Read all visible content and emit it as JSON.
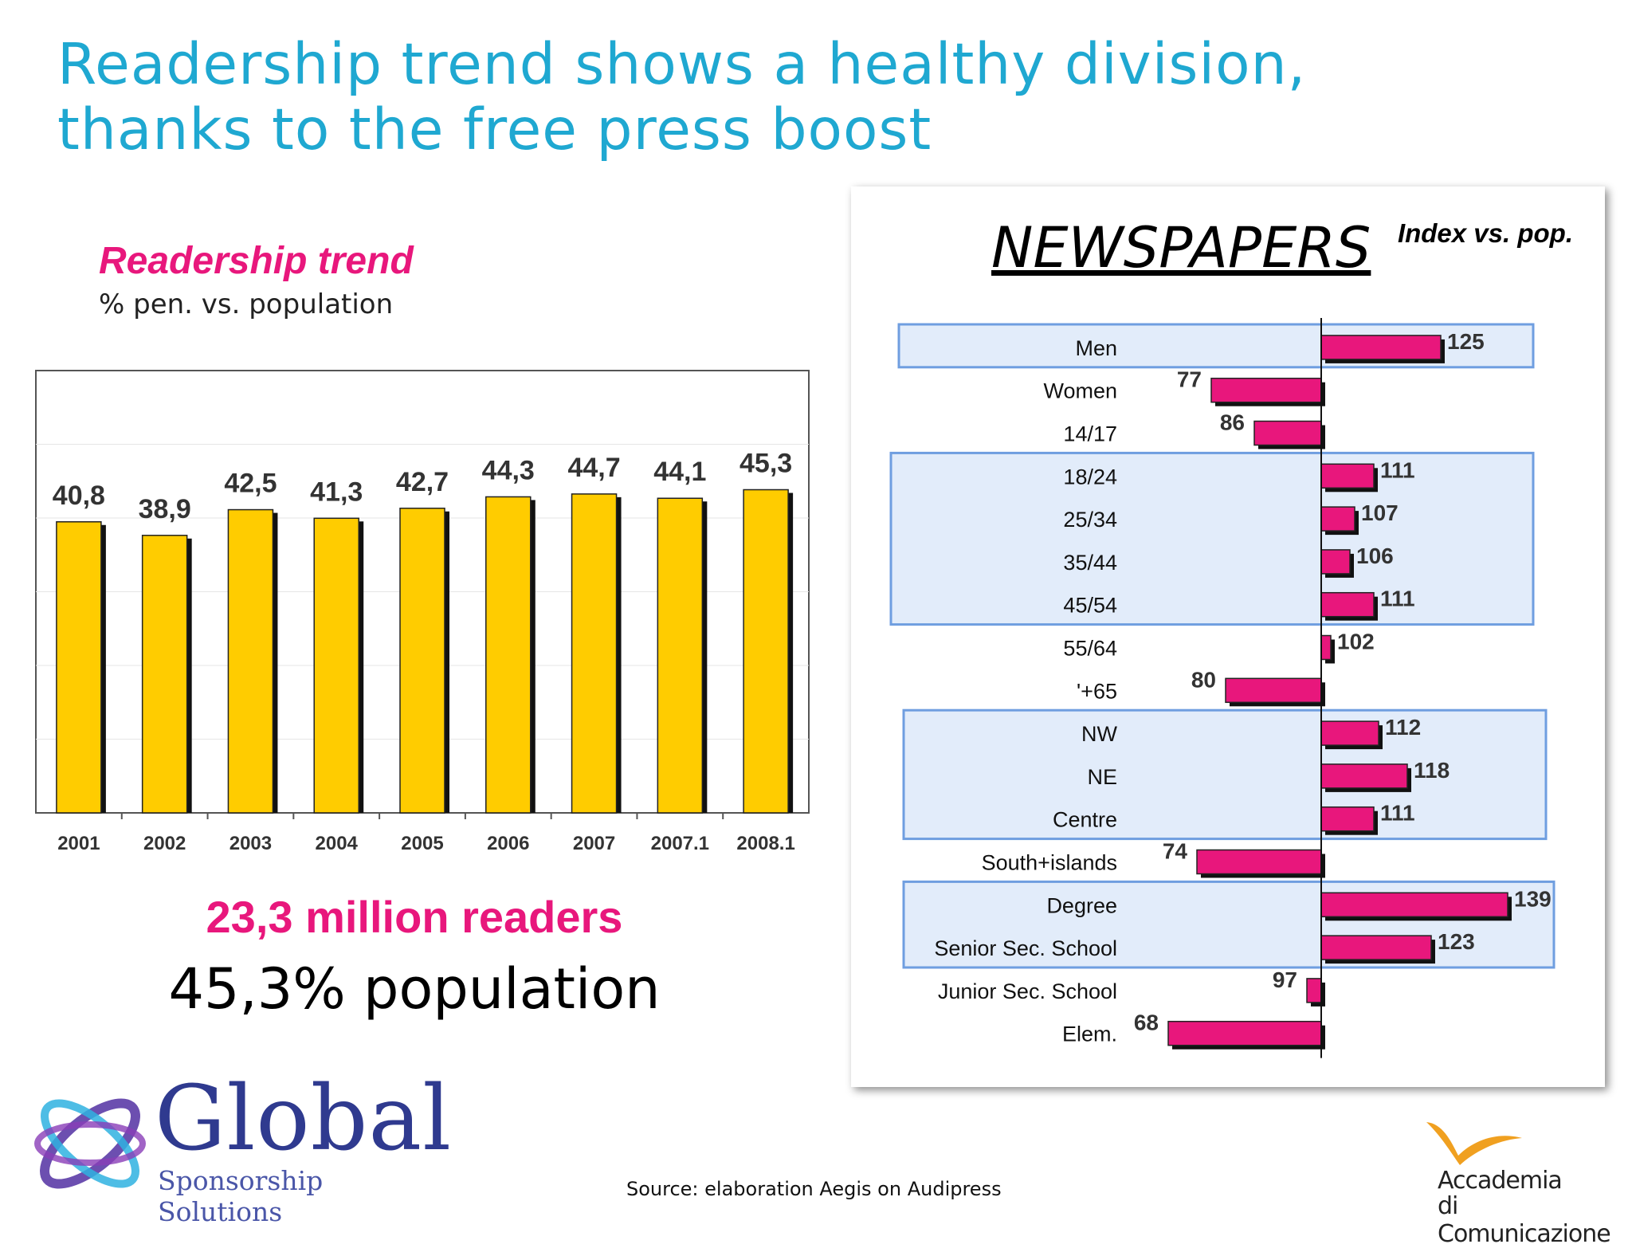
{
  "slide": {
    "title": "Readership trend shows a healthy division, thanks to the free press boost",
    "readers": "23,3 million readers",
    "population": "45,3% population",
    "source": "Source: elaboration Aegis on Audipress"
  },
  "logos": {
    "global_word": "Global",
    "global_tagline": "Sponsorship Solutions",
    "academy_line1": "Accademia",
    "academy_line2": "di Comunicazione"
  },
  "colors": {
    "title": "#1fa8d1",
    "accent": "#e8177c",
    "bar_yellow": "#ffcc00",
    "highlight_fill": "#e2ecfa",
    "highlight_border": "#6f9ee0"
  },
  "chart_data": [
    {
      "type": "bar",
      "title": "Readership trend",
      "subtitle": "% pen. vs. population",
      "categories": [
        "2001",
        "2002",
        "2003",
        "2004",
        "2005",
        "2006",
        "2007",
        "2007.1",
        "2008.1"
      ],
      "values": [
        40.8,
        38.9,
        42.5,
        41.3,
        42.7,
        44.3,
        44.7,
        44.1,
        45.3
      ],
      "labels": [
        "40,8",
        "38,9",
        "42,5",
        "41,3",
        "42,7",
        "44,3",
        "44,7",
        "44,1",
        "45,3"
      ],
      "ylim": [
        0,
        62
      ],
      "grid": true,
      "legend": "none"
    },
    {
      "type": "bar",
      "orientation": "horizontal",
      "title": "NEWSPAPERS",
      "subtitle": "Index vs. pop.",
      "baseline": 100,
      "categories": [
        "Men",
        "Women",
        "14/17",
        "18/24",
        "25/34",
        "35/44",
        "45/54",
        "55/64",
        "'+65",
        "NW",
        "NE",
        "Centre",
        "South+islands",
        "Degree",
        "Senior Sec. School",
        "Junior Sec. School",
        "Elem."
      ],
      "values": [
        125,
        77,
        86,
        111,
        107,
        106,
        111,
        102,
        80,
        112,
        118,
        111,
        74,
        139,
        123,
        97,
        68
      ],
      "labels": [
        "125",
        "77",
        "86",
        "111",
        "107",
        "106",
        "111",
        "102",
        "80",
        "112",
        "118",
        "111",
        "74",
        "139",
        "123",
        "97",
        "68"
      ],
      "groups": [
        {
          "from": 0,
          "to": 0
        },
        {
          "from": 3,
          "to": 6
        },
        {
          "from": 9,
          "to": 11
        },
        {
          "from": 13,
          "to": 14
        }
      ]
    }
  ]
}
